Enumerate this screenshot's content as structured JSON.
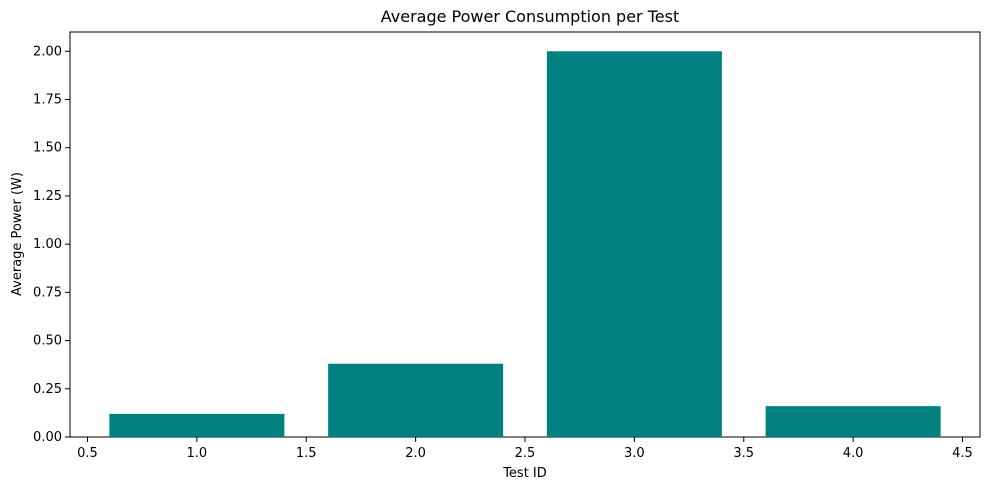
{
  "chart_data": {
    "type": "bar",
    "title": "Average Power Consumption per Test",
    "xlabel": "Test ID",
    "ylabel": "Average Power (W)",
    "x": [
      1.0,
      2.0,
      3.0,
      4.0
    ],
    "values": [
      0.12,
      0.38,
      2.0,
      0.16
    ],
    "bar_width": 0.8,
    "xlim": [
      0.42,
      4.58
    ],
    "ylim": [
      0,
      2.1
    ],
    "x_ticks": [
      0.5,
      1.0,
      1.5,
      2.0,
      2.5,
      3.0,
      3.5,
      4.0,
      4.5
    ],
    "x_tick_labels": [
      "0.5",
      "1.0",
      "1.5",
      "2.0",
      "2.5",
      "3.0",
      "3.5",
      "4.0",
      "4.5"
    ],
    "y_ticks": [
      0,
      0.25,
      0.5,
      0.75,
      1.0,
      1.25,
      1.5,
      1.75,
      2.0
    ],
    "y_tick_labels": [
      "0.00",
      "0.25",
      "0.50",
      "0.75",
      "1.00",
      "1.25",
      "1.50",
      "1.75",
      "2.00"
    ],
    "grid": false,
    "legend": "none",
    "bar_color": "#008080"
  }
}
